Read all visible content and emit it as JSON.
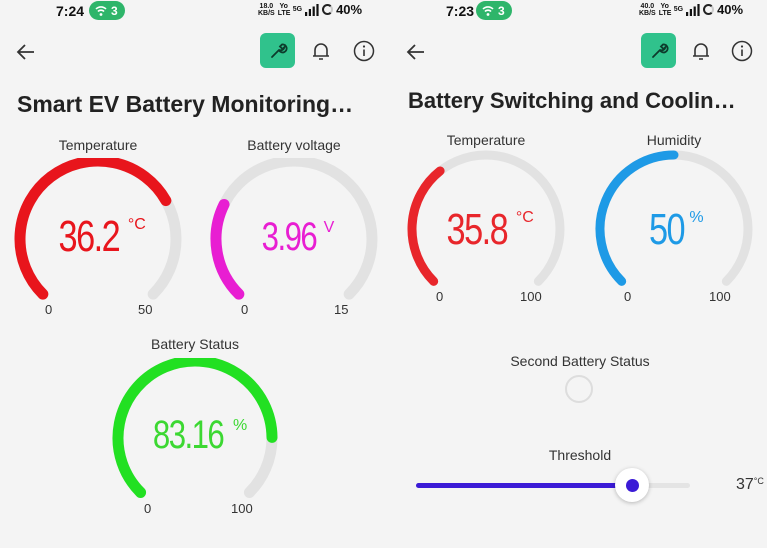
{
  "left": {
    "status": {
      "time": "7:24",
      "hotspot_count": "3",
      "speed_value": "18.0",
      "speed_unit": "KB/S",
      "volte": "Yo LTE",
      "network": "5G",
      "battery": "40%"
    },
    "title": "Smart EV Battery Monitoring…",
    "gauges": [
      {
        "label": "Temperature",
        "value": "36.2",
        "unit": "°C",
        "min": "0",
        "max": "50",
        "fraction": 0.724,
        "color": "#e8151c"
      },
      {
        "label": "Battery voltage",
        "value": "3.96",
        "unit": "V",
        "min": "0",
        "max": "15",
        "fraction": 0.264,
        "color": "#e81ed2"
      },
      {
        "label": "Battery Status",
        "value": "83.16",
        "unit": "%",
        "min": "0",
        "max": "100",
        "fraction": 0.8316,
        "color": "#22e022"
      }
    ]
  },
  "right": {
    "status": {
      "time": "7:23",
      "hotspot_count": "3",
      "speed_value": "40.0",
      "speed_unit": "KB/S",
      "volte": "Yo LTE",
      "network": "5G",
      "battery": "40%"
    },
    "title": "Battery Switching and Coolin…",
    "gauges": [
      {
        "label": "Temperature",
        "value": "35.8",
        "unit": "°C",
        "min": "0",
        "max": "100",
        "fraction": 0.358,
        "color": "#e8262b"
      },
      {
        "label": "Humidity",
        "value": "50",
        "unit": "%",
        "min": "0",
        "max": "100",
        "fraction": 0.5,
        "color": "#1e9ae6"
      }
    ],
    "second_battery_label": "Second Battery Status",
    "threshold": {
      "label": "Threshold",
      "value": "37",
      "unit": "°C",
      "fraction": 0.79
    }
  },
  "colors": {
    "accent": "#30c28c",
    "track": "#e2e2e2",
    "slider": "#3b1bd6"
  },
  "icons": [
    "back-arrow-icon",
    "wrench-icon",
    "bell-icon",
    "info-icon",
    "wifi-hotspot-icon",
    "signal-icon",
    "battery-icon"
  ]
}
